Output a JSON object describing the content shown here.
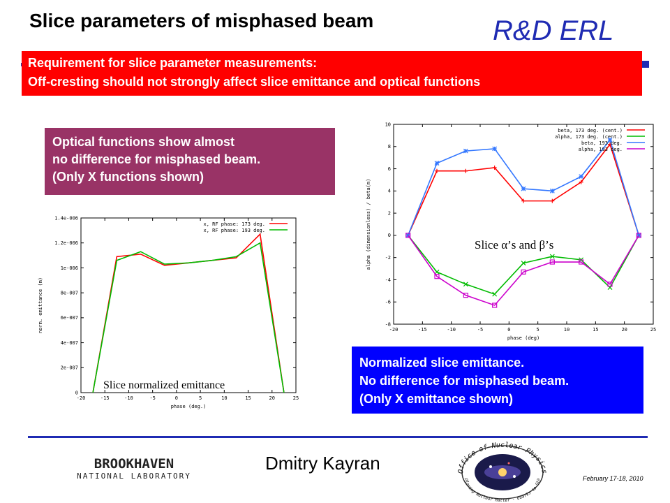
{
  "slide": {
    "title": "Slice parameters of misphased beam",
    "brand": "R&D ERL",
    "requirement_lines": [
      "Requirement for slice parameter measurements:",
      "Off-cresting should not strongly affect slice emittance and optical functions"
    ],
    "optical_note_lines": [
      "Optical functions show almost",
      "no difference for misphased beam.",
      "(Only X functions shown)"
    ],
    "emittance_note_lines": [
      "Normalized slice emittance.",
      "No difference for misphased beam.",
      "(Only X emittance shown)"
    ],
    "author": "Dmitry Kayran",
    "date": "February 17-18, 2010",
    "logo_left_line1": "BROOKHAVEN",
    "logo_left_line2": "NATIONAL LABORATORY",
    "logo_right_top": "Office of Nuclear Physics",
    "logo_right_bottom": "Exploring Nuclear Matter - Quarks to Stars"
  },
  "colors": {
    "brand_blue": "#1f2bb3",
    "red_box": "#ff0000",
    "purple_box": "#993366",
    "blue_box": "#0000ff"
  },
  "chart_data": [
    {
      "type": "line",
      "xlabel": "phase (deg.)",
      "ylabel": "norm. emittance (m)",
      "annotation": "Slice normalized emittance",
      "xlim": [
        -20,
        25
      ],
      "ylim": [
        0,
        1.4e-06
      ],
      "x_ticks": [
        "-20",
        "-15",
        "-10",
        "-5",
        "0",
        "5",
        "10",
        "15",
        "20",
        "25"
      ],
      "y_ticks": [
        "0",
        "2e-007",
        "4e-007",
        "6e-007",
        "8e-007",
        "1e-006",
        "1.2e-006",
        "1.4e-006"
      ],
      "x": [
        -17.5,
        -12.5,
        -7.5,
        -2.5,
        2.5,
        7.5,
        12.5,
        17.5,
        22.5
      ],
      "series": [
        {
          "name": "x, RF phase: 173 deg.",
          "color": "#ff0000",
          "values": [
            0,
            1.09e-06,
            1.11e-06,
            1.02e-06,
            1.04e-06,
            1.06e-06,
            1.08e-06,
            1.27e-06,
            0
          ]
        },
        {
          "name": "x, RF phase: 193 deg.",
          "color": "#00bb00",
          "values": [
            0,
            1.06e-06,
            1.13e-06,
            1.03e-06,
            1.04e-06,
            1.06e-06,
            1.09e-06,
            1.2e-06,
            0
          ]
        }
      ],
      "legend": "top-right",
      "grid": false
    },
    {
      "type": "line",
      "xlabel": "phase (deg)",
      "ylabel": "alpha (dimensionless) / beta(m)",
      "annotation": "Slice α’s and β’s",
      "xlim": [
        -20,
        25
      ],
      "ylim": [
        -8,
        10
      ],
      "x_ticks": [
        "-20",
        "-15",
        "-10",
        "-5",
        "0",
        "5",
        "10",
        "15",
        "20",
        "25"
      ],
      "y_ticks": [
        "-8",
        "-6",
        "-4",
        "-2",
        "0",
        "2",
        "4",
        "6",
        "8",
        "10"
      ],
      "x": [
        -17.5,
        -12.5,
        -7.5,
        -2.5,
        2.5,
        7.5,
        12.5,
        17.5,
        22.5
      ],
      "series": [
        {
          "name": "beta, 173 deg. (cent.)",
          "color": "#ff0000",
          "marker": "+",
          "values": [
            0,
            5.8,
            5.8,
            6.1,
            3.1,
            3.1,
            4.8,
            8.2,
            0
          ]
        },
        {
          "name": "alpha, 173 deg. (cent.)",
          "color": "#00bb00",
          "marker": "x",
          "values": [
            0,
            -3.3,
            -4.4,
            -5.3,
            -2.5,
            -1.9,
            -2.2,
            -4.7,
            0
          ]
        },
        {
          "name": "beta, 193 deg.",
          "color": "#3377ff",
          "marker": "*",
          "values": [
            0,
            6.5,
            7.6,
            7.8,
            4.2,
            4.0,
            5.3,
            8.6,
            0
          ]
        },
        {
          "name": "alpha, 193 deg.",
          "color": "#cc00cc",
          "marker": "square",
          "values": [
            0,
            -3.7,
            -5.4,
            -6.3,
            -3.3,
            -2.4,
            -2.4,
            -4.4,
            0
          ]
        }
      ],
      "legend": "top-right",
      "grid": false
    }
  ]
}
